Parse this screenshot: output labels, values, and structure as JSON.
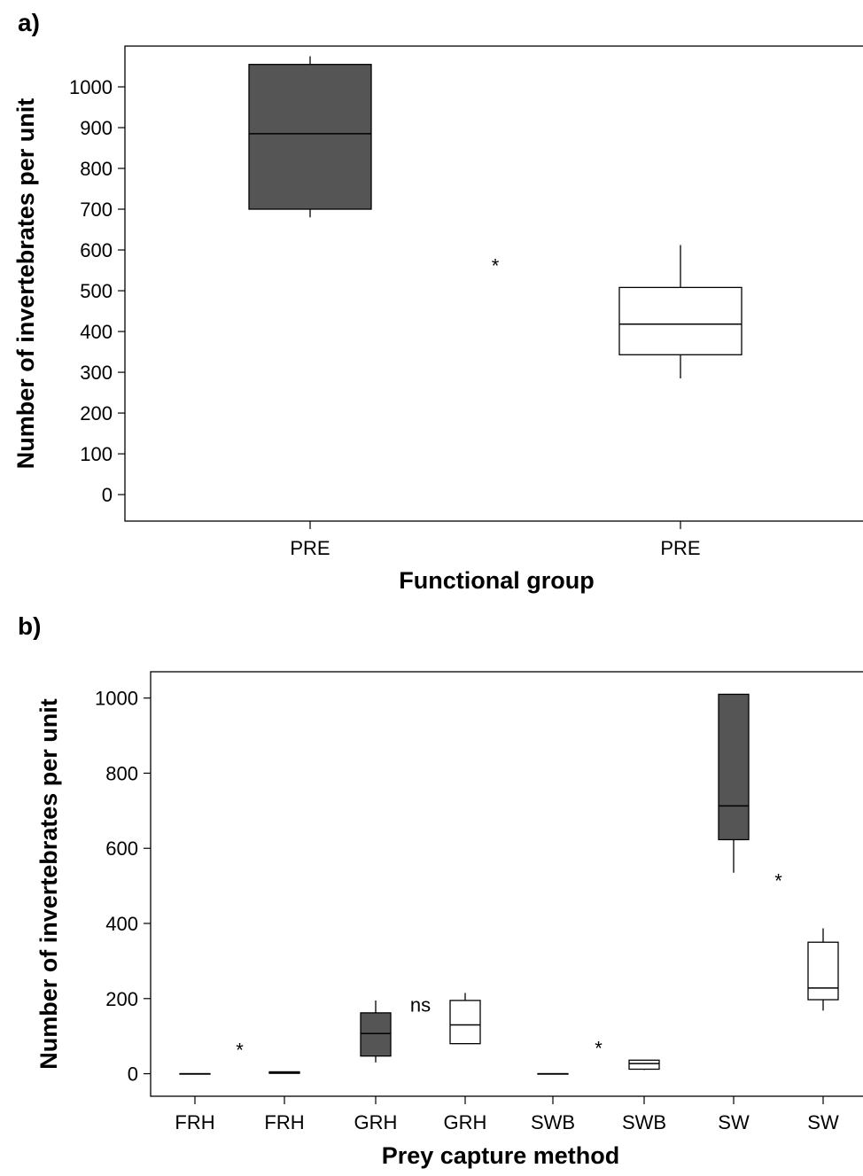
{
  "chart_data": [
    {
      "panel_label": "a)",
      "type": "box",
      "xlabel": "Functional group",
      "ylabel": "Number of invertebrates per unit",
      "ylim": [
        -65,
        1100
      ],
      "yticks": [
        0,
        100,
        200,
        300,
        400,
        500,
        600,
        700,
        800,
        900,
        1000
      ],
      "categories": [
        "PRE",
        "PRE"
      ],
      "boxes": [
        {
          "category": "PRE",
          "whisker_low": 680,
          "q1": 700,
          "median": 885,
          "q3": 1055,
          "whisker_high": 1075,
          "fill": "#555555"
        },
        {
          "category": "PRE",
          "whisker_low": 285,
          "q1": 343,
          "median": 418,
          "q3": 508,
          "whisker_high": 612,
          "fill": "#ffffff"
        }
      ],
      "annotations": [
        {
          "text": "*",
          "between": [
            0,
            1
          ],
          "y": 545
        }
      ],
      "grid": false
    },
    {
      "panel_label": "b)",
      "type": "box",
      "xlabel": "Prey capture method",
      "ylabel": "Number of invertebrates per unit",
      "ylim": [
        -60,
        1070
      ],
      "yticks": [
        0,
        200,
        400,
        600,
        800,
        1000
      ],
      "categories": [
        "FRH",
        "FRH",
        "GRH",
        "GRH",
        "SWB",
        "SWB",
        "SW",
        "SW"
      ],
      "boxes": [
        {
          "category": "FRH",
          "whisker_low": 0,
          "q1": 0,
          "median": 0,
          "q3": 0,
          "whisker_high": 0,
          "fill": "#555555"
        },
        {
          "category": "FRH",
          "whisker_low": 0,
          "q1": 1,
          "median": 3,
          "q3": 5,
          "whisker_high": 6,
          "fill": "#ffffff"
        },
        {
          "category": "GRH",
          "whisker_low": 30,
          "q1": 47,
          "median": 107,
          "q3": 162,
          "whisker_high": 195,
          "fill": "#555555"
        },
        {
          "category": "GRH",
          "whisker_low": 80,
          "q1": 80,
          "median": 130,
          "q3": 195,
          "whisker_high": 215,
          "fill": "#ffffff"
        },
        {
          "category": "SWB",
          "whisker_low": 0,
          "q1": 0,
          "median": 0,
          "q3": 0,
          "whisker_high": 0,
          "fill": "#555555"
        },
        {
          "category": "SWB",
          "whisker_low": 10,
          "q1": 12,
          "median": 27,
          "q3": 36,
          "whisker_high": 36,
          "fill": "#ffffff"
        },
        {
          "category": "SW",
          "whisker_low": 535,
          "q1": 623,
          "median": 713,
          "q3": 1010,
          "whisker_high": 1010,
          "fill": "#555555"
        },
        {
          "category": "SW",
          "whisker_low": 168,
          "q1": 197,
          "median": 228,
          "q3": 350,
          "whisker_high": 387,
          "fill": "#ffffff"
        }
      ],
      "annotations": [
        {
          "text": "*",
          "between": [
            0,
            1
          ],
          "y": 45
        },
        {
          "text": "ns",
          "between": [
            2,
            3
          ],
          "y": 165
        },
        {
          "text": "*",
          "between": [
            4,
            5
          ],
          "y": 50
        },
        {
          "text": "*",
          "between": [
            6,
            7
          ],
          "y": 495
        }
      ],
      "grid": false
    }
  ]
}
